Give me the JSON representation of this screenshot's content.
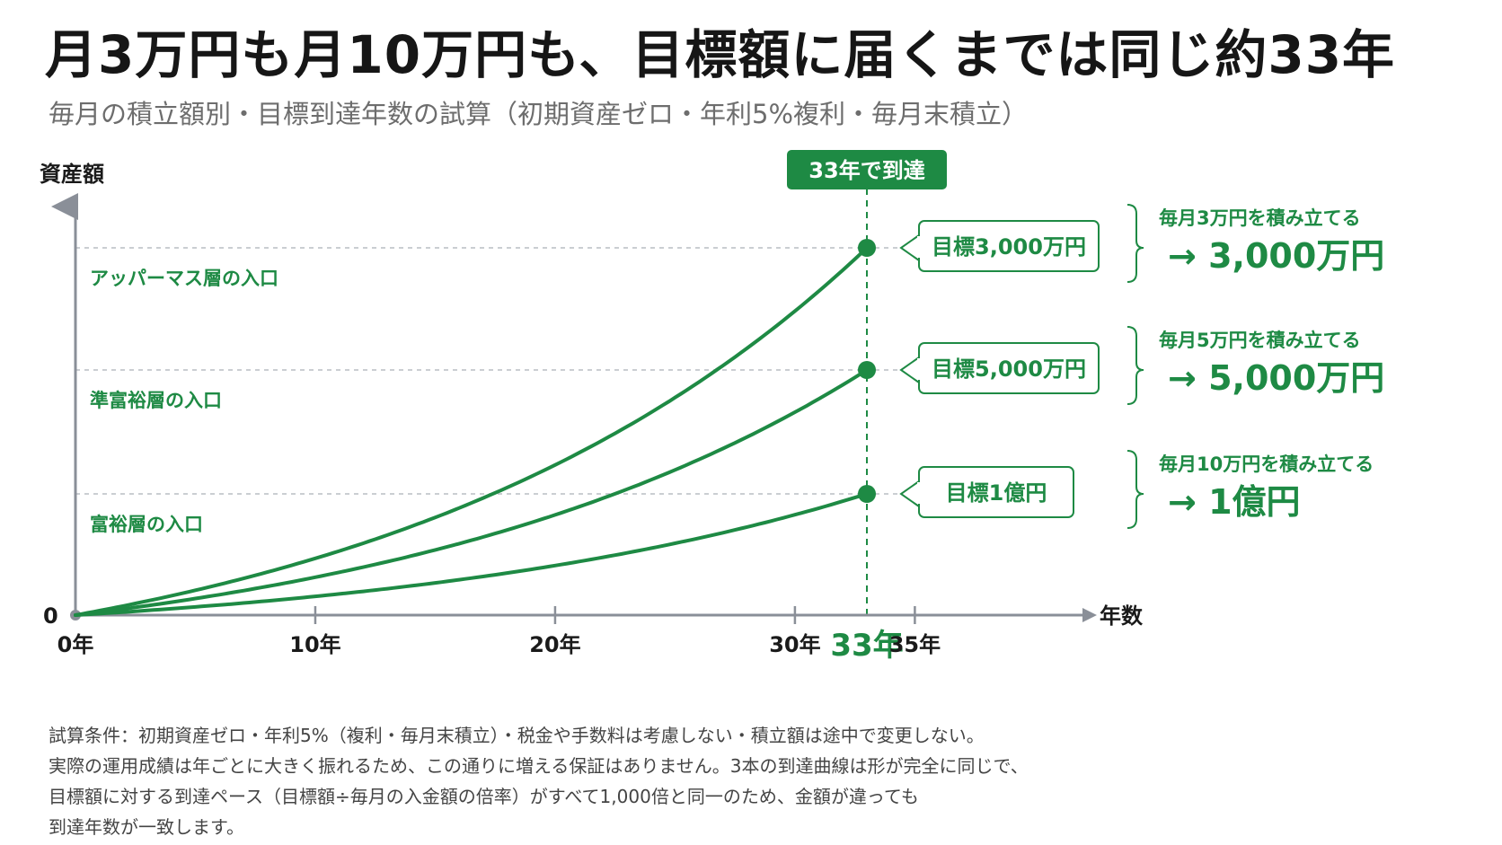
{
  "header": {
    "title": "月3万円も月10万円も、目標額に届くまでは同じ約33年",
    "subtitle": "毎月の積立額別・目標到達年数の試算（初期資産ゼロ・年利5%複利・毎月末積立）"
  },
  "colors": {
    "accent": "#1e8a44",
    "axis": "#8a8f98",
    "guide": "#b9bdc3",
    "text": "#1a1a1a"
  },
  "chart_data": {
    "type": "line",
    "xlabel": "年数",
    "ylabel": "資産額",
    "y_zero_label": "0",
    "xlim": [
      0,
      38
    ],
    "x_ticks": [
      {
        "value": 0,
        "label": "0年"
      },
      {
        "value": 10,
        "label": "10年"
      },
      {
        "value": 20,
        "label": "20年"
      },
      {
        "value": 30,
        "label": "30年"
      },
      {
        "value": 33,
        "label": "33年",
        "highlight": true
      },
      {
        "value": 35,
        "label": "35年"
      }
    ],
    "marker": {
      "x": 33,
      "label": "33年で到達"
    },
    "series": [
      {
        "target": 3000,
        "callout": "目標3,000万円",
        "level_label": "アッパーマス層の入口",
        "note": "毎月3万円を積み立てる",
        "result": "→ 3,000万円",
        "level": 0.748
      },
      {
        "target": 5000,
        "callout": "目標5,000万円",
        "level_label": "準富裕層の入口",
        "note": "毎月5万円を積み立てる",
        "result": "→ 5,000万円",
        "level": 0.493
      },
      {
        "target": 10000,
        "callout": "目標1億円",
        "level_label": "富裕層の入口",
        "note": "毎月10万円を積み立てる",
        "result": "→ 1億円",
        "level": 0.242
      }
    ]
  },
  "notes": [
    "試算条件：初期資産ゼロ・年利5%（複利・毎月末積立）・税金や手数料は考慮しない・積立額は途中で変更しない。",
    "実際の運用成績は年ごとに大きく振れるため、この通りに増える保証はありません。3本の到達曲線は形が完全に同じで、",
    "目標額に対する到達ペース（目標額÷毎月の入金額の倍率）がすべて1,000倍と同一のため、金額が違っても",
    "到達年数が一致します。"
  ]
}
